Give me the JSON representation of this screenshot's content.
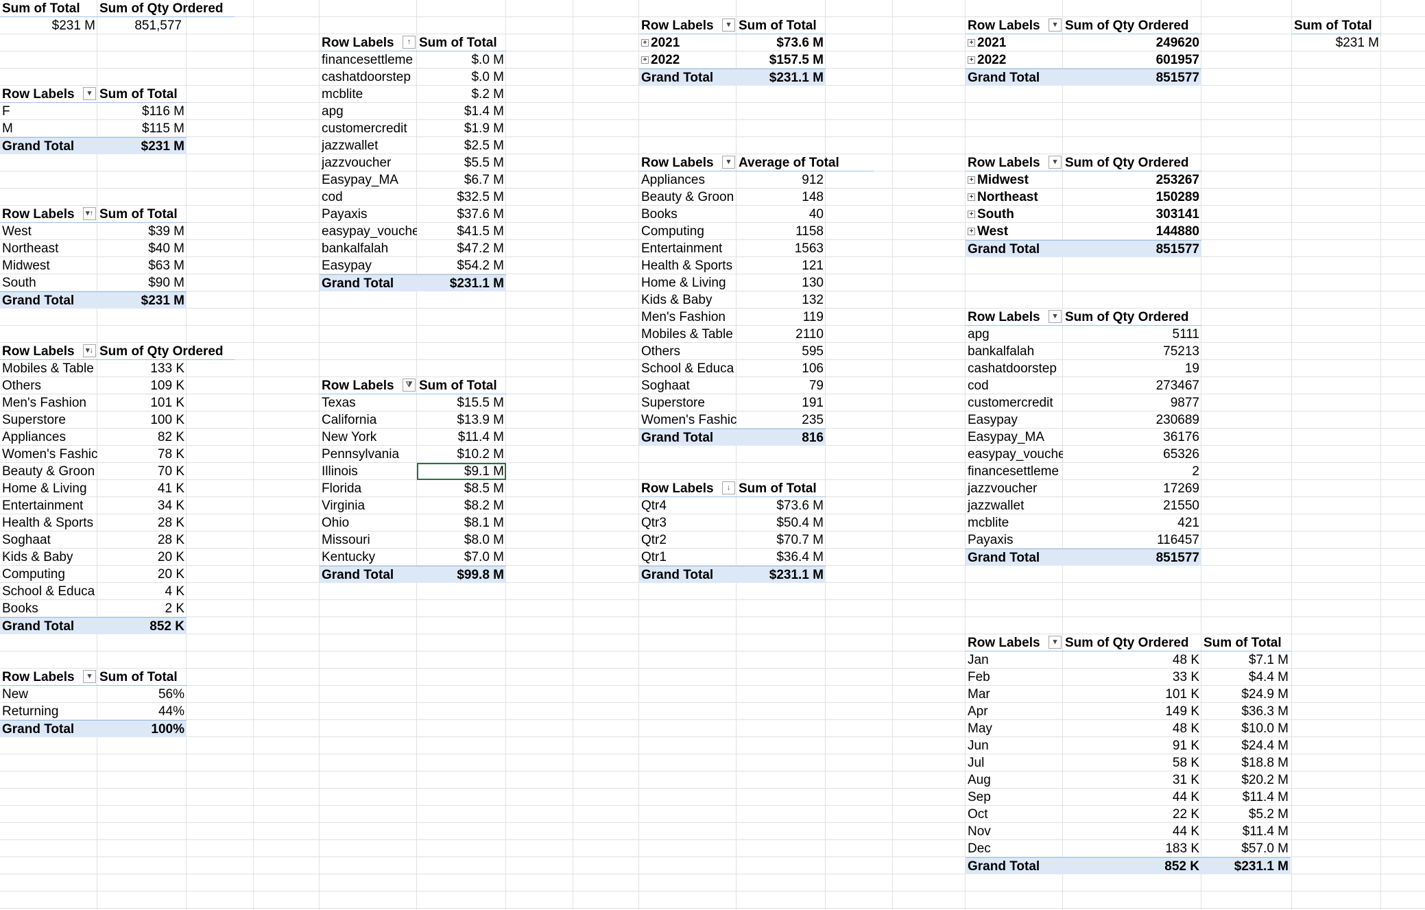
{
  "labels": {
    "row_labels": "Row Labels",
    "grand_total": "Grand Total"
  },
  "p_summary": {
    "h1": "Sum of Total",
    "h2": "Sum of Qty Ordered",
    "v1": "$231 M",
    "v2": "851,577"
  },
  "p_gender": {
    "h2": "Sum of Total",
    "rows": [
      [
        "F",
        "$116 M"
      ],
      [
        "M",
        "$115 M"
      ]
    ],
    "total": "$231 M"
  },
  "p_region_total": {
    "h2": "Sum of Total",
    "rows": [
      [
        "West",
        "$39 M"
      ],
      [
        "Northeast",
        "$40 M"
      ],
      [
        "Midwest",
        "$63 M"
      ],
      [
        "South",
        "$90 M"
      ]
    ],
    "total": "$231 M"
  },
  "p_category_qty": {
    "h2": "Sum of Qty Ordered",
    "rows": [
      [
        "Mobiles & Table",
        "133 K"
      ],
      [
        "Others",
        "109 K"
      ],
      [
        "Men's Fashion",
        "101 K"
      ],
      [
        "Superstore",
        "100 K"
      ],
      [
        "Appliances",
        "82 K"
      ],
      [
        "Women's Fashic",
        "78 K"
      ],
      [
        "Beauty & Groon",
        "70 K"
      ],
      [
        "Home & Living",
        "41 K"
      ],
      [
        "Entertainment",
        "34 K"
      ],
      [
        "Health & Sports",
        "28 K"
      ],
      [
        "Soghaat",
        "28 K"
      ],
      [
        "Kids & Baby",
        "20 K"
      ],
      [
        "Computing",
        "20 K"
      ],
      [
        "School & Educa",
        "4 K"
      ],
      [
        "Books",
        "2 K"
      ]
    ],
    "total": "852 K"
  },
  "p_customer_type": {
    "h2": "Sum of Total",
    "rows": [
      [
        "New",
        "56%"
      ],
      [
        "Returning",
        "44%"
      ]
    ],
    "total": "100%"
  },
  "p_payment_total": {
    "h2": "Sum of Total",
    "rows": [
      [
        "financesettleme",
        "$.0 M"
      ],
      [
        "cashatdoorstep",
        "$.0 M"
      ],
      [
        "mcblite",
        "$.2 M"
      ],
      [
        "apg",
        "$1.4 M"
      ],
      [
        "customercredit",
        "$1.9 M"
      ],
      [
        "jazzwallet",
        "$2.5 M"
      ],
      [
        "jazzvoucher",
        "$5.5 M"
      ],
      [
        "Easypay_MA",
        "$6.7 M"
      ],
      [
        "cod",
        "$32.5 M"
      ],
      [
        "Payaxis",
        "$37.6 M"
      ],
      [
        "easypay_vouche",
        "$41.5 M"
      ],
      [
        "bankalfalah",
        "$47.2 M"
      ],
      [
        "Easypay",
        "$54.2 M"
      ]
    ],
    "total": "$231.1 M"
  },
  "p_state_total": {
    "h2": "Sum of Total",
    "rows": [
      [
        "Texas",
        "$15.5 M"
      ],
      [
        "California",
        "$13.9 M"
      ],
      [
        "New York",
        "$11.4 M"
      ],
      [
        "Pennsylvania",
        "$10.2 M"
      ],
      [
        "Illinois",
        "$9.1 M"
      ],
      [
        "Florida",
        "$8.5 M"
      ],
      [
        "Virginia",
        "$8.2 M"
      ],
      [
        "Ohio",
        "$8.1 M"
      ],
      [
        "Missouri",
        "$8.0 M"
      ],
      [
        "Kentucky",
        "$7.0 M"
      ]
    ],
    "total": "$99.8 M"
  },
  "p_year_total": {
    "h2": "Sum of Total",
    "rows": [
      [
        "2021",
        "$73.6 M"
      ],
      [
        "2022",
        "$157.5 M"
      ]
    ],
    "total": "$231.1 M"
  },
  "p_category_avg": {
    "h2": "Average of Total",
    "rows": [
      [
        "Appliances",
        "912"
      ],
      [
        "Beauty & Groon",
        "148"
      ],
      [
        "Books",
        "40"
      ],
      [
        "Computing",
        "1158"
      ],
      [
        "Entertainment",
        "1563"
      ],
      [
        "Health & Sports",
        "121"
      ],
      [
        "Home & Living",
        "130"
      ],
      [
        "Kids & Baby",
        "132"
      ],
      [
        "Men's Fashion",
        "119"
      ],
      [
        "Mobiles & Table",
        "2110"
      ],
      [
        "Others",
        "595"
      ],
      [
        "School & Educa",
        "106"
      ],
      [
        "Soghaat",
        "79"
      ],
      [
        "Superstore",
        "191"
      ],
      [
        "Women's Fashic",
        "235"
      ]
    ],
    "total": "816"
  },
  "p_quarter_total": {
    "h2": "Sum of Total",
    "rows": [
      [
        "Qtr4",
        "$73.6 M"
      ],
      [
        "Qtr3",
        "$50.4 M"
      ],
      [
        "Qtr2",
        "$70.7 M"
      ],
      [
        "Qtr1",
        "$36.4 M"
      ]
    ],
    "total": "$231.1 M"
  },
  "p_year_qty": {
    "h2": "Sum of Qty Ordered",
    "rows": [
      [
        "2021",
        "249620"
      ],
      [
        "2022",
        "601957"
      ]
    ],
    "total": "851577"
  },
  "p_region_qty": {
    "h2": "Sum of Qty Ordered",
    "rows": [
      [
        "Midwest",
        "253267"
      ],
      [
        "Northeast",
        "150289"
      ],
      [
        "South",
        "303141"
      ],
      [
        "West",
        "144880"
      ]
    ],
    "total": "851577"
  },
  "p_payment_qty": {
    "h2": "Sum of Qty Ordered",
    "rows": [
      [
        "apg",
        "5111"
      ],
      [
        "bankalfalah",
        "75213"
      ],
      [
        "cashatdoorstep",
        "19"
      ],
      [
        "cod",
        "273467"
      ],
      [
        "customercredit",
        "9877"
      ],
      [
        "Easypay",
        "230689"
      ],
      [
        "Easypay_MA",
        "36176"
      ],
      [
        "easypay_vouche",
        "65326"
      ],
      [
        "financesettleme",
        "2"
      ],
      [
        "jazzvoucher",
        "17269"
      ],
      [
        "jazzwallet",
        "21550"
      ],
      [
        "mcblite",
        "421"
      ],
      [
        "Payaxis",
        "116457"
      ]
    ],
    "total": "851577"
  },
  "p_month": {
    "h2": "Sum of Qty Ordered",
    "h3": "Sum of Total",
    "rows": [
      [
        "Jan",
        "48 K",
        "$7.1 M"
      ],
      [
        "Feb",
        "33 K",
        "$4.4 M"
      ],
      [
        "Mar",
        "101 K",
        "$24.9 M"
      ],
      [
        "Apr",
        "149 K",
        "$36.3 M"
      ],
      [
        "May",
        "48 K",
        "$10.0 M"
      ],
      [
        "Jun",
        "91 K",
        "$24.4 M"
      ],
      [
        "Jul",
        "58 K",
        "$18.8 M"
      ],
      [
        "Aug",
        "31 K",
        "$20.2 M"
      ],
      [
        "Sep",
        "44 K",
        "$11.4 M"
      ],
      [
        "Oct",
        "22 K",
        "$5.2 M"
      ],
      [
        "Nov",
        "44 K",
        "$11.4 M"
      ],
      [
        "Dec",
        "183 K",
        "$57.0 M"
      ]
    ],
    "total_qty": "852 K",
    "total_sum": "$231.1 M"
  },
  "p_grand_sum": {
    "h": "Sum of Total",
    "v": "$231 M"
  },
  "icons": {
    "dropdown": "dropdown-arrow-icon",
    "sort_asc": "sort-ascending-icon",
    "sort_desc": "sort-descending-icon",
    "filter": "filter-icon",
    "expand": "expand-plus-icon"
  },
  "colors": {
    "header_border": "#9bc2e6",
    "total_fill": "#dde8f7",
    "selection": "#217346",
    "gridline": "#e1e1e1"
  }
}
